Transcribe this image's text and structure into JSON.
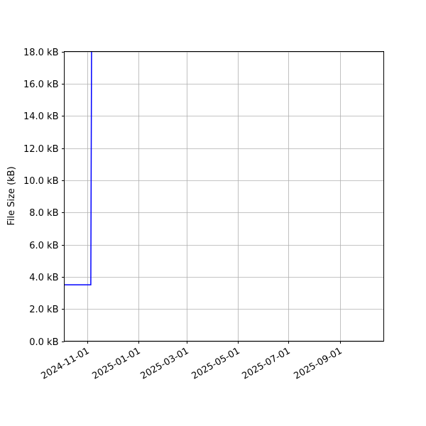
{
  "chart_data": {
    "type": "line",
    "title": "",
    "xlabel": "",
    "ylabel": "File Size (kB)",
    "xlim": [
      "2024-10-04",
      "2025-10-24"
    ],
    "ylim": [
      0,
      18
    ],
    "grid": true,
    "x_ticks": [
      "2024-11-01",
      "2025-01-01",
      "2025-03-01",
      "2025-05-01",
      "2025-07-01",
      "2025-09-01"
    ],
    "y_ticks": [
      0,
      2,
      4,
      6,
      8,
      10,
      12,
      14,
      16,
      18
    ],
    "y_tick_labels": [
      "0.0 kB",
      "2.0 kB",
      "4.0 kB",
      "6.0 kB",
      "8.0 kB",
      "10.0 kB",
      "12.0 kB",
      "14.0 kB",
      "16.0 kB",
      "18.0 kB"
    ],
    "series": [
      {
        "color": "#0000ff",
        "x": [
          "2024-10-04",
          "2024-11-05",
          "2024-11-06"
        ],
        "y": [
          3.5,
          3.5,
          20
        ]
      }
    ]
  }
}
